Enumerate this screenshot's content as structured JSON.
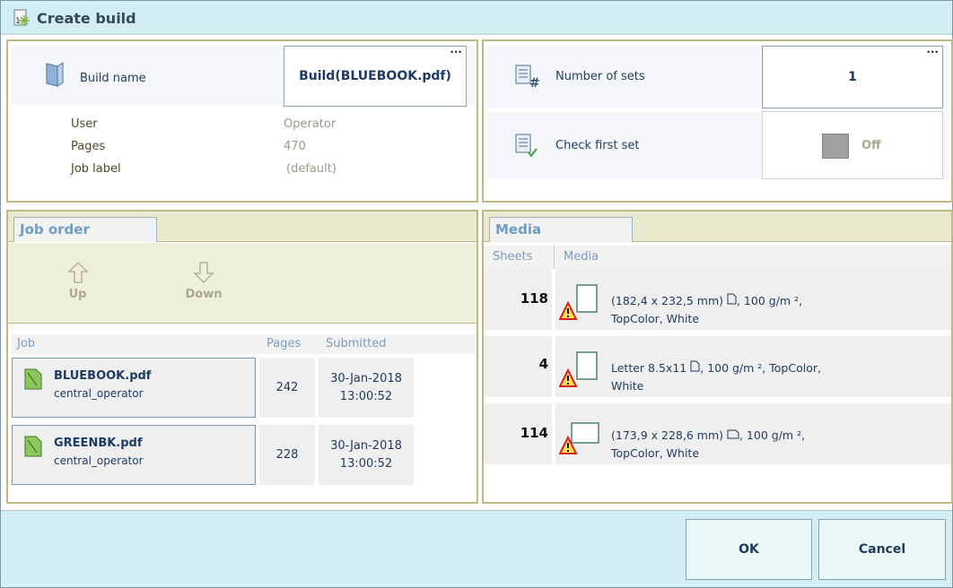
{
  "window": {
    "title": "Create build",
    "icon": "create-build-icon"
  },
  "build": {
    "name_label": "Build name",
    "name_value": "Build(BLUEBOOK.pdf)",
    "more": "...",
    "info": [
      {
        "label": "User",
        "value": "Operator"
      },
      {
        "label": "Pages",
        "value": "470"
      },
      {
        "label": "Job label",
        "value": "(default)"
      }
    ]
  },
  "sets": {
    "label": "Number of sets",
    "value": "1",
    "more": "...",
    "check_label": "Check first set",
    "check_value": "Off"
  },
  "job_order": {
    "tab": "Job order",
    "up": "Up",
    "down": "Down",
    "columns": [
      "Job",
      "Pages",
      "Submitted"
    ],
    "rows": [
      {
        "name": "BLUEBOOK.pdf",
        "owner": "central_operator",
        "pages": "242",
        "date": "30-Jan-2018",
        "time": "13:00:52"
      },
      {
        "name": "GREENBK.pdf",
        "owner": "central_operator",
        "pages": "228",
        "date": "30-Jan-2018",
        "time": "13:00:52"
      }
    ]
  },
  "media": {
    "tab": "Media",
    "columns": [
      "Sheets",
      "Media"
    ],
    "rows": [
      {
        "sheets": "118",
        "line1a": "(182,4 x 232,5 mm)",
        "line1b": ", 100 g/m ²,",
        "line2": "TopColor, White",
        "orientation": "portrait"
      },
      {
        "sheets": "4",
        "line1a": "Letter 8.5x11",
        "line1b": ", 100 g/m ², TopColor,",
        "line2": "White",
        "orientation": "portrait"
      },
      {
        "sheets": "114",
        "line1a": "(173,9 x 228,6 mm)",
        "line1b": ", 100 g/m ²,",
        "line2": "TopColor, White",
        "orientation": "landscape"
      }
    ]
  },
  "footer": {
    "ok": "OK",
    "cancel": "Cancel"
  }
}
